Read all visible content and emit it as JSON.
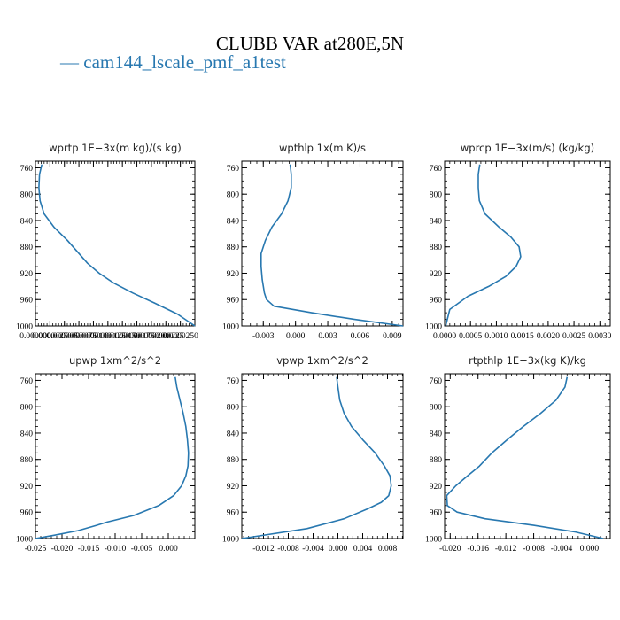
{
  "figure": {
    "title": "CLUBB VAR at280E,5N",
    "legend_label": "— cam144_lscale_pmf_a1test",
    "line_color": "#2878b0"
  },
  "chart_data": [
    {
      "type": "line",
      "title": "wprtp   1E−3x(m kg)/(s kg)",
      "xlim": [
        0.0,
        2.75e-05
      ],
      "ylim": [
        750,
        1000
      ],
      "xticks": [
        0.0,
        2.5e-06,
        5e-06,
        7.5e-06,
        1e-05,
        1.25e-05,
        1.5e-05,
        1.75e-05,
        2e-05,
        2.25e-05,
        2.5e-05
      ],
      "xtick_labels": [
        "0.000000",
        "0.0000025",
        "0.0000050",
        "0.0000075",
        "0.0000100",
        "0.0000125",
        "0.0000150",
        "0.0000175",
        "0.0000200",
        "0.0000225",
        "0.0000250"
      ],
      "yticks": [
        760,
        800,
        840,
        880,
        920,
        960,
        1000
      ],
      "ytick_labels": [
        "760",
        "800",
        "840",
        "880",
        "920",
        "960",
        "1000"
      ],
      "series": [
        {
          "x": [
            1.1e-06,
            7e-07,
            6e-07,
            8e-07,
            1.5e-06,
            3.2e-06,
            5.5e-06,
            7.5e-06,
            9e-06,
            1.1e-05,
            1.35e-05,
            1.68e-05,
            2.05e-05,
            2.45e-05,
            2.75e-05
          ],
          "y": [
            755,
            770,
            790,
            810,
            830,
            850,
            870,
            890,
            905,
            920,
            935,
            950,
            965,
            982,
            1000
          ]
        }
      ]
    },
    {
      "type": "line",
      "title": "wpthlp   1x(m K)/s",
      "xlim": [
        -0.005,
        0.01
      ],
      "ylim": [
        750,
        1000
      ],
      "xticks": [
        -0.003,
        0.0,
        0.003,
        0.006,
        0.009
      ],
      "xtick_labels": [
        "-0.003",
        "0.000",
        "0.003",
        "0.006",
        "0.009"
      ],
      "yticks": [
        760,
        800,
        840,
        880,
        920,
        960,
        1000
      ],
      "ytick_labels": [
        "760",
        "800",
        "840",
        "880",
        "920",
        "960",
        "1000"
      ],
      "series": [
        {
          "x": [
            -0.0005,
            -0.0004,
            -0.0004,
            -0.0007,
            -0.0013,
            -0.0022,
            -0.0028,
            -0.0032,
            -0.0032,
            -0.0031,
            -0.0029,
            -0.0027,
            -0.002,
            0.0015,
            0.0055,
            0.01
          ],
          "y": [
            755,
            770,
            790,
            810,
            830,
            850,
            870,
            890,
            910,
            930,
            950,
            960,
            970,
            980,
            990,
            1000
          ]
        }
      ]
    },
    {
      "type": "line",
      "title": "wprcp   1E−3x(m/s) (kg/kg)",
      "xlim": [
        0.0,
        0.0032
      ],
      "ylim": [
        750,
        1000
      ],
      "xticks": [
        0.0,
        0.0005,
        0.001,
        0.0015,
        0.002,
        0.0025,
        0.003
      ],
      "xtick_labels": [
        "0.0000",
        "0.0005",
        "0.0010",
        "0.0015",
        "0.0020",
        "0.0025",
        "0.0030"
      ],
      "yticks": [
        760,
        800,
        840,
        880,
        920,
        960,
        1000
      ],
      "ytick_labels": [
        "760",
        "800",
        "840",
        "880",
        "920",
        "960",
        "1000"
      ],
      "series": [
        {
          "x": [
            0.00068,
            0.00065,
            0.00065,
            0.00067,
            0.00078,
            0.00105,
            0.00128,
            0.00144,
            0.00147,
            0.00138,
            0.00118,
            0.00085,
            0.00045,
            0.0001,
            2e-05
          ],
          "y": [
            755,
            770,
            790,
            810,
            830,
            850,
            865,
            880,
            895,
            910,
            925,
            940,
            955,
            975,
            1000
          ]
        }
      ]
    },
    {
      "type": "line",
      "title": "upwp   1xm^2/s^2",
      "xlim": [
        -0.025,
        0.005
      ],
      "ylim": [
        750,
        1000
      ],
      "xticks": [
        -0.025,
        -0.02,
        -0.015,
        -0.01,
        -0.005,
        0.0
      ],
      "xtick_labels": [
        "-0.025",
        "-0.020",
        "-0.015",
        "-0.010",
        "-0.005",
        "0.000"
      ],
      "yticks": [
        760,
        800,
        840,
        880,
        920,
        960,
        1000
      ],
      "ytick_labels": [
        "760",
        "800",
        "840",
        "880",
        "920",
        "960",
        "1000"
      ],
      "series": [
        {
          "x": [
            0.0013,
            0.0016,
            0.0022,
            0.0028,
            0.0033,
            0.0036,
            0.0038,
            0.0037,
            0.0033,
            0.0025,
            0.001,
            -0.0018,
            -0.0065,
            -0.0115,
            -0.0135,
            -0.017,
            -0.0215,
            -0.025
          ],
          "y": [
            755,
            770,
            790,
            810,
            830,
            850,
            870,
            890,
            905,
            920,
            935,
            950,
            965,
            975,
            980,
            988,
            995,
            1000
          ]
        }
      ]
    },
    {
      "type": "line",
      "title": "vpwp   1xm^2/s^2",
      "xlim": [
        -0.0155,
        0.0105
      ],
      "ylim": [
        750,
        1000
      ],
      "xticks": [
        -0.012,
        -0.008,
        -0.004,
        0.0,
        0.004,
        0.008
      ],
      "xtick_labels": [
        "-0.012",
        "-0.008",
        "-0.004",
        "0.000",
        "0.004",
        "0.008"
      ],
      "yticks": [
        760,
        800,
        840,
        880,
        920,
        960,
        1000
      ],
      "ytick_labels": [
        "760",
        "800",
        "840",
        "880",
        "920",
        "960",
        "1000"
      ],
      "series": [
        {
          "x": [
            -0.0002,
            0.0,
            0.0003,
            0.001,
            0.0022,
            0.004,
            0.006,
            0.0075,
            0.0084,
            0.0086,
            0.0082,
            0.007,
            0.0048,
            0.001,
            -0.005,
            -0.0155
          ],
          "y": [
            755,
            770,
            790,
            810,
            830,
            850,
            870,
            890,
            905,
            920,
            935,
            945,
            955,
            970,
            985,
            1000
          ]
        }
      ]
    },
    {
      "type": "line",
      "title": "rtpthlp   1E−3x(kg K)/kg",
      "xlim": [
        -0.0208,
        0.003
      ],
      "ylim": [
        750,
        1000
      ],
      "xticks": [
        -0.02,
        -0.016,
        -0.012,
        -0.008,
        -0.004,
        0.0
      ],
      "xtick_labels": [
        "-0.020",
        "-0.016",
        "-0.012",
        "-0.008",
        "-0.004",
        "0.000"
      ],
      "yticks": [
        760,
        800,
        840,
        880,
        920,
        960,
        1000
      ],
      "ytick_labels": [
        "760",
        "800",
        "840",
        "880",
        "920",
        "960",
        "1000"
      ],
      "series": [
        {
          "x": [
            -0.0032,
            -0.0035,
            -0.0048,
            -0.007,
            -0.0095,
            -0.0118,
            -0.014,
            -0.0158,
            -0.0175,
            -0.0192,
            -0.0205,
            -0.0204,
            -0.019,
            -0.015,
            -0.008,
            -0.002,
            0.002
          ],
          "y": [
            755,
            770,
            790,
            810,
            830,
            850,
            870,
            890,
            905,
            920,
            935,
            950,
            960,
            970,
            980,
            990,
            1000
          ]
        }
      ]
    }
  ]
}
